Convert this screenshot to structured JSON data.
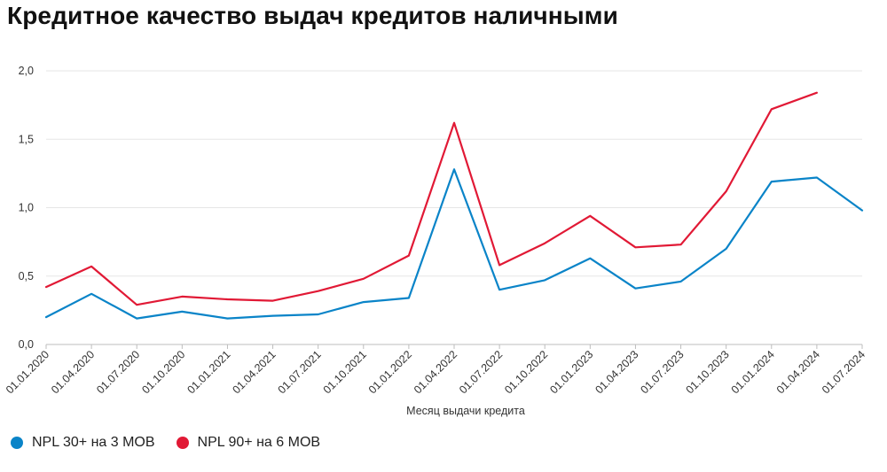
{
  "chart_data": {
    "type": "line",
    "title": "Кредитное качество выдач кредитов наличными",
    "xlabel": "Месяц выдачи кредита",
    "ylabel": "",
    "ylim": [
      0,
      2
    ],
    "y_ticks": [
      "0,0",
      "0,5",
      "1,0",
      "1,5",
      "2,0"
    ],
    "grid": true,
    "legend_position": "bottom-left",
    "categories": [
      "01.01.2020",
      "01.04.2020",
      "01.07.2020",
      "01.10.2020",
      "01.01.2021",
      "01.04.2021",
      "01.07.2021",
      "01.10.2021",
      "01.01.2022",
      "01.04.2022",
      "01.07.2022",
      "01.10.2022",
      "01.01.2023",
      "01.04.2023",
      "01.07.2023",
      "01.10.2023",
      "01.01.2024",
      "01.04.2024",
      "01.07.2024"
    ],
    "series": [
      {
        "name": "NPL 30+ на 3 MOB",
        "color": "#0a84c8",
        "values": [
          0.2,
          0.37,
          0.19,
          0.24,
          0.19,
          0.21,
          0.22,
          0.31,
          0.34,
          1.28,
          0.4,
          0.47,
          0.63,
          0.41,
          0.46,
          0.7,
          1.19,
          1.22,
          0.98
        ]
      },
      {
        "name": "NPL 90+ на 6 MOB",
        "color": "#e11935",
        "values": [
          0.42,
          0.57,
          0.29,
          0.35,
          0.33,
          0.32,
          0.39,
          0.48,
          0.65,
          1.62,
          0.58,
          0.74,
          0.94,
          0.71,
          0.73,
          1.12,
          1.72,
          1.84,
          null
        ]
      }
    ]
  }
}
